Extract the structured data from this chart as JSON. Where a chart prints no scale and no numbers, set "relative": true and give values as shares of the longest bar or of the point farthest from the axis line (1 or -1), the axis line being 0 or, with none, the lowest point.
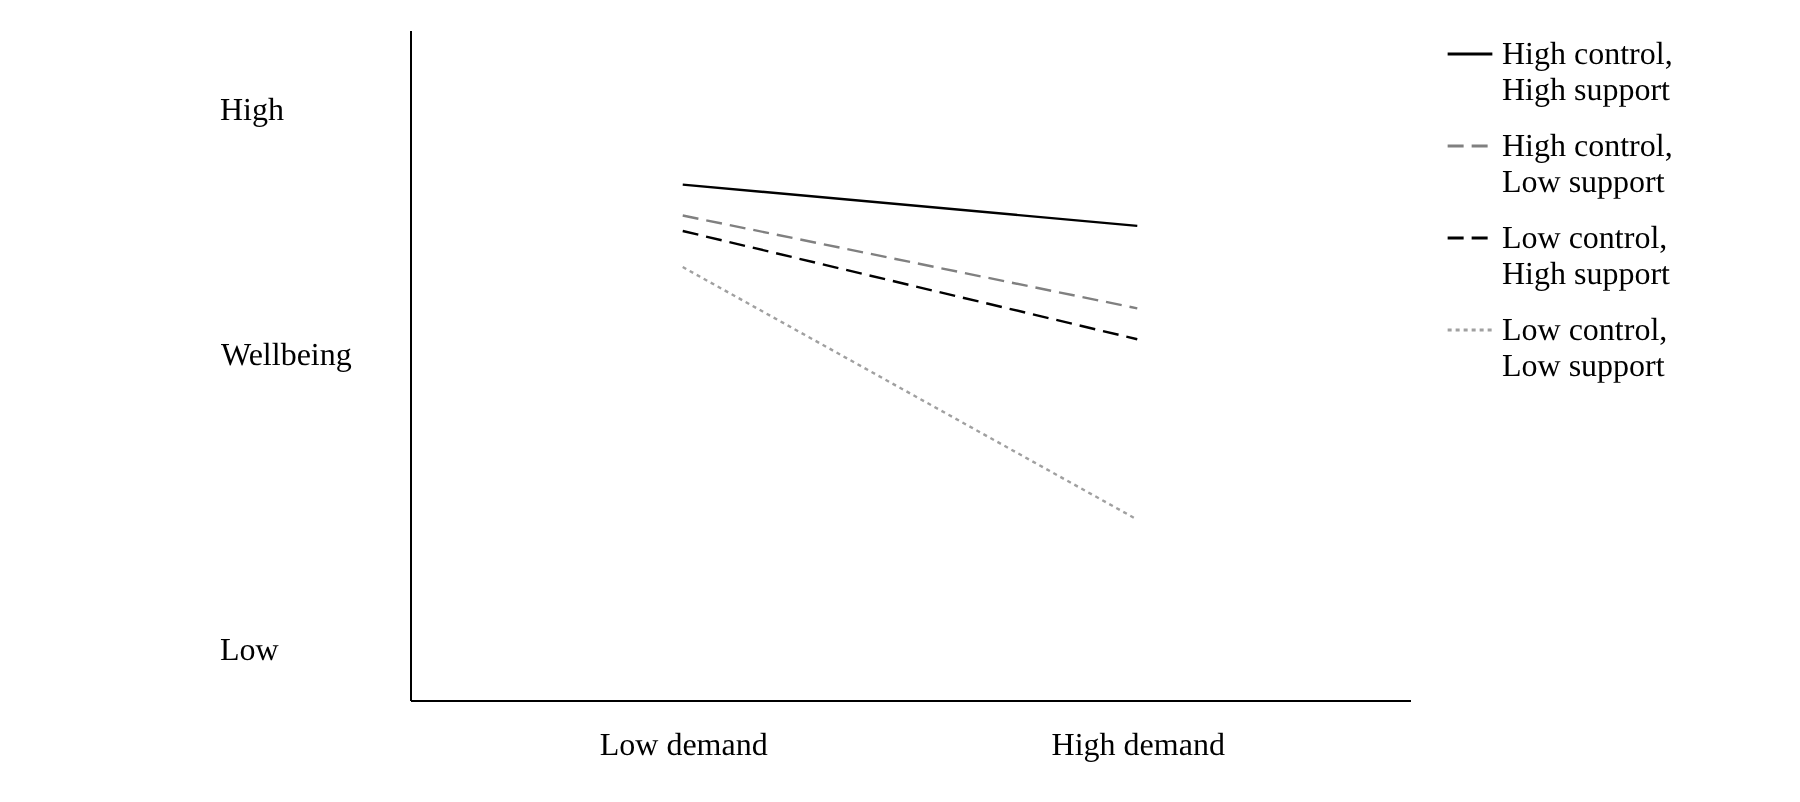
{
  "chart_data": {
    "type": "line",
    "relative": true,
    "ylabel": "Wellbeing",
    "categories": [
      "Low demand",
      "High demand"
    ],
    "series": [
      {
        "name": "High control, High support",
        "color": "#000000",
        "line_style": "solid",
        "values": [
          1,
          0.92
        ]
      },
      {
        "name": "High control, Low support",
        "color": "#808080",
        "line_style": "dashed",
        "values": [
          0.94,
          0.76
        ]
      },
      {
        "name": "Low control, High support",
        "color": "#000000",
        "line_style": "dashed",
        "values": [
          0.91,
          0.7
        ]
      },
      {
        "name": "Low control, Low support",
        "color": "#a0a0a0",
        "line_style": "dotted",
        "values": [
          0.84,
          0.35
        ]
      }
    ],
    "annotations": [
      "High",
      "Low"
    ],
    "legend": "right",
    "grid": false,
    "marker": "none"
  }
}
